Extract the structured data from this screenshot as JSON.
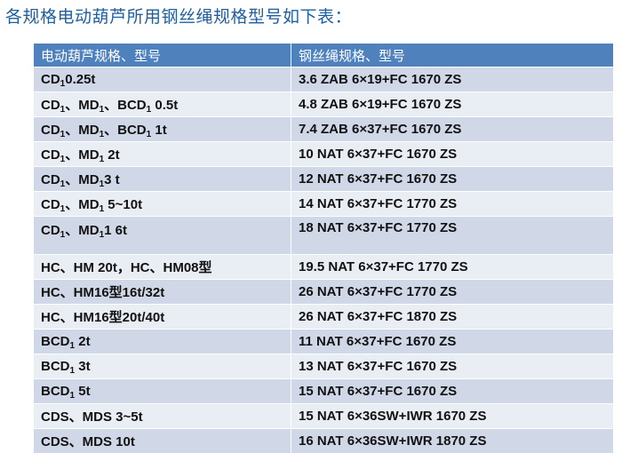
{
  "title": "各规格电动葫芦所用钢丝绳规格型号如下表：",
  "table": {
    "headers": [
      "电动葫芦规格、型号",
      "钢丝绳规格、型号"
    ],
    "rows": [
      {
        "hoist": [
          {
            "t": "CD"
          },
          {
            "t": "1",
            "sub": true
          },
          {
            "t": "0.25t"
          }
        ],
        "rope": "3.6 ZAB 6×19+FC 1670 ZS"
      },
      {
        "hoist": [
          {
            "t": "CD"
          },
          {
            "t": "1",
            "sub": true
          },
          {
            "t": "、MD"
          },
          {
            "t": "1",
            "sub": true
          },
          {
            "t": "、BCD"
          },
          {
            "t": "1",
            "sub": true
          },
          {
            "t": " 0.5t"
          }
        ],
        "rope": "4.8 ZAB 6×19+FC 1670 ZS"
      },
      {
        "hoist": [
          {
            "t": "CD"
          },
          {
            "t": "1",
            "sub": true
          },
          {
            "t": "、MD"
          },
          {
            "t": "1",
            "sub": true
          },
          {
            "t": "、BCD"
          },
          {
            "t": "1",
            "sub": true
          },
          {
            "t": " 1t"
          }
        ],
        "rope": "7.4 ZAB 6×37+FC 1670 ZS"
      },
      {
        "hoist": [
          {
            "t": "CD"
          },
          {
            "t": "1",
            "sub": true
          },
          {
            "t": "、MD"
          },
          {
            "t": "1",
            "sub": true
          },
          {
            "t": " 2t"
          }
        ],
        "rope": "10 NAT 6×37+FC 1670 ZS"
      },
      {
        "hoist": [
          {
            "t": "CD"
          },
          {
            "t": "1",
            "sub": true
          },
          {
            "t": "、MD"
          },
          {
            "t": "1",
            "sub": true
          },
          {
            "t": "3 t"
          }
        ],
        "rope": "12 NAT 6×37+FC 1670 ZS"
      },
      {
        "hoist": [
          {
            "t": "CD"
          },
          {
            "t": "1",
            "sub": true
          },
          {
            "t": "、MD"
          },
          {
            "t": "1",
            "sub": true
          },
          {
            "t": " 5~10t"
          }
        ],
        "rope": "14 NAT 6×37+FC 1770 ZS"
      },
      {
        "hoist": [
          {
            "t": "CD"
          },
          {
            "t": "1",
            "sub": true
          },
          {
            "t": "、MD"
          },
          {
            "t": "1",
            "sub": true
          },
          {
            "t": "1 6t"
          }
        ],
        "rope": "18 NAT 6×37+FC 1770 ZS",
        "tall": true
      },
      {
        "hoist": [
          {
            "t": "HC、HM 20t，HC、HM08型"
          }
        ],
        "rope": "19.5 NAT 6×37+FC 1770 ZS"
      },
      {
        "hoist": [
          {
            "t": "HC、HM16型16t/32t"
          }
        ],
        "rope": "26 NAT 6×37+FC 1770 ZS"
      },
      {
        "hoist": [
          {
            "t": "HC、HM16型20t/40t"
          }
        ],
        "rope": "26 NAT 6×37+FC 1870 ZS"
      },
      {
        "hoist": [
          {
            "t": "BCD"
          },
          {
            "t": "1",
            "sub": true
          },
          {
            "t": " 2t"
          }
        ],
        "rope": "11 NAT 6×37+FC 1670 ZS"
      },
      {
        "hoist": [
          {
            "t": "BCD"
          },
          {
            "t": "1",
            "sub": true
          },
          {
            "t": " 3t"
          }
        ],
        "rope": "13 NAT 6×37+FC 1670 ZS"
      },
      {
        "hoist": [
          {
            "t": "BCD"
          },
          {
            "t": "1",
            "sub": true
          },
          {
            "t": " 5t"
          }
        ],
        "rope": "15 NAT 6×37+FC 1670 ZS"
      },
      {
        "hoist": [
          {
            "t": "CDS、MDS 3~5t"
          }
        ],
        "rope": "15 NAT 6×36SW+IWR 1670 ZS"
      },
      {
        "hoist": [
          {
            "t": "CDS、MDS 10t"
          }
        ],
        "rope": "16 NAT 6×36SW+IWR 1870 ZS"
      }
    ]
  },
  "colors": {
    "header": "#4f81bd",
    "row_dark": "#d0d8e8",
    "row_light": "#e9edf4",
    "title": "#1f5fa0"
  }
}
